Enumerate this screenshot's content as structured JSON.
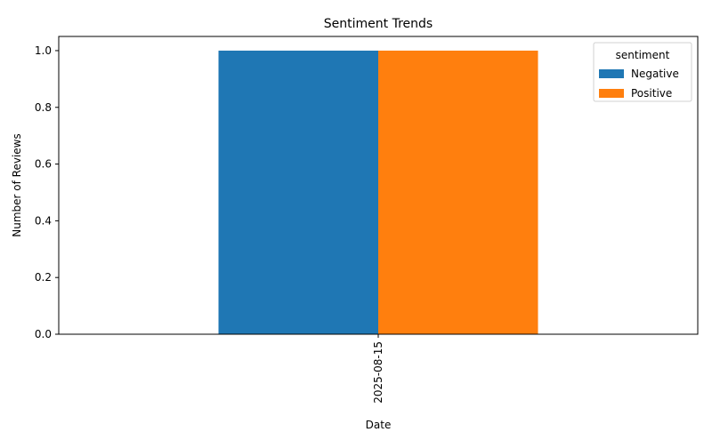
{
  "chart_data": {
    "type": "bar",
    "title": "Sentiment Trends",
    "xlabel": "Date",
    "ylabel": "Number of Reviews",
    "categories": [
      "2025-08-15"
    ],
    "series": [
      {
        "name": "Negative",
        "values": [
          1
        ],
        "color": "#1f77b4"
      },
      {
        "name": "Positive",
        "values": [
          1
        ],
        "color": "#ff7f0e"
      }
    ],
    "ylim": [
      0,
      1.05
    ],
    "yticks": [
      "0.0",
      "0.2",
      "0.4",
      "0.6",
      "0.8",
      "1.0"
    ],
    "grid": false,
    "legend": {
      "title": "sentiment",
      "placement": "top-right"
    }
  }
}
